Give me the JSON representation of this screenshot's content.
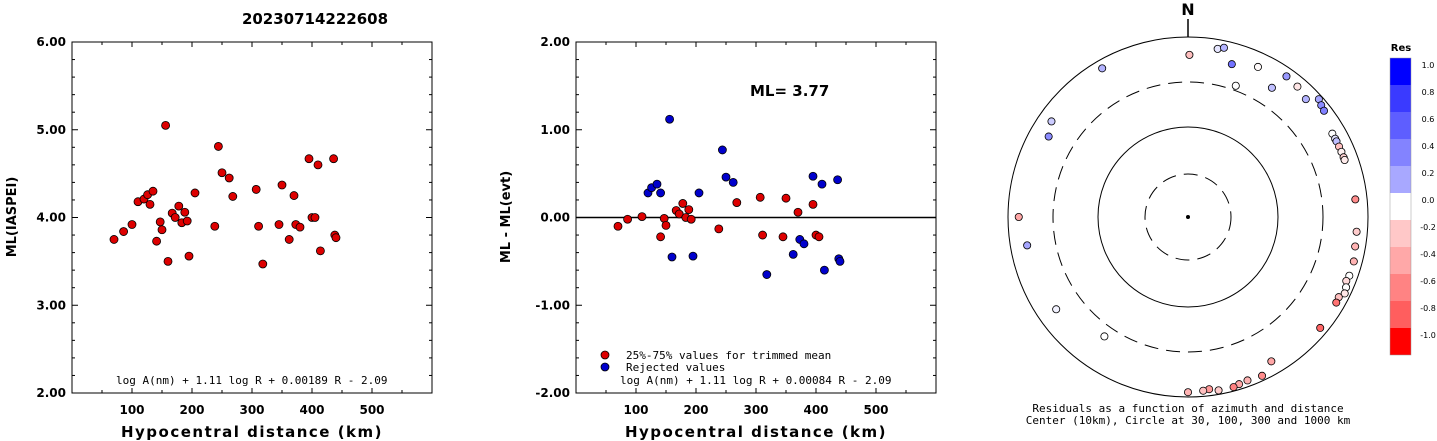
{
  "title": "20230714222608",
  "chart_data": [
    {
      "type": "scatter",
      "ylabel": "ML(IASPEI)",
      "xlabel": "Hypocentral distance (km)",
      "xlim": [
        0,
        600
      ],
      "ylim": [
        2.0,
        6.0
      ],
      "xticks": [
        "100",
        "200",
        "300",
        "400",
        "500"
      ],
      "yticks": [
        "2.00",
        "3.00",
        "4.00",
        "5.00",
        "6.00"
      ],
      "formula": "log A(nm) + 1.11 log R + 0.00189 R - 2.09",
      "points": [
        [
          70,
          3.75
        ],
        [
          86,
          3.84
        ],
        [
          100,
          3.92
        ],
        [
          110,
          4.18
        ],
        [
          120,
          4.21
        ],
        [
          126,
          4.26
        ],
        [
          130,
          4.15
        ],
        [
          135,
          4.3
        ],
        [
          141,
          3.73
        ],
        [
          147,
          3.95
        ],
        [
          150,
          3.86
        ],
        [
          156,
          5.05
        ],
        [
          160,
          3.5
        ],
        [
          167,
          4.05
        ],
        [
          172,
          4.0
        ],
        [
          178,
          4.13
        ],
        [
          183,
          3.94
        ],
        [
          188,
          4.06
        ],
        [
          192,
          3.96
        ],
        [
          195,
          3.56
        ],
        [
          205,
          4.28
        ],
        [
          238,
          3.9
        ],
        [
          244,
          4.81
        ],
        [
          250,
          4.51
        ],
        [
          262,
          4.45
        ],
        [
          268,
          4.24
        ],
        [
          307,
          4.32
        ],
        [
          311,
          3.9
        ],
        [
          318,
          3.47
        ],
        [
          345,
          3.92
        ],
        [
          350,
          4.37
        ],
        [
          362,
          3.75
        ],
        [
          370,
          4.25
        ],
        [
          373,
          3.92
        ],
        [
          380,
          3.89
        ],
        [
          395,
          4.67
        ],
        [
          400,
          4.0
        ],
        [
          405,
          4.0
        ],
        [
          410,
          4.6
        ],
        [
          414,
          3.62
        ],
        [
          436,
          4.67
        ],
        [
          438,
          3.8
        ],
        [
          440,
          3.77
        ]
      ]
    },
    {
      "type": "scatter",
      "ylabel": "ML - ML(evt)",
      "xlabel": "Hypocentral distance (km)",
      "xlim": [
        0,
        600
      ],
      "ylim": [
        -2.0,
        2.0
      ],
      "xticks": [
        "100",
        "200",
        "300",
        "400",
        "500"
      ],
      "yticks": [
        "-2.00",
        "-1.00",
        "0.00",
        "1.00",
        "2.00"
      ],
      "annotation": "ML= 3.77",
      "formula": "log A(nm) + 1.11 log R + 0.00084 R - 2.09",
      "legend": [
        "25%-75% values for trimmed mean",
        "Rejected values"
      ],
      "colors": {
        "trimmed": "#dd0000",
        "rejected": "#0000cc"
      },
      "trimmed": [
        [
          70,
          -0.1
        ],
        [
          86,
          -0.02
        ],
        [
          110,
          0.01
        ],
        [
          141,
          -0.22
        ],
        [
          147,
          -0.01
        ],
        [
          150,
          -0.09
        ],
        [
          167,
          0.08
        ],
        [
          172,
          0.04
        ],
        [
          178,
          0.16
        ],
        [
          183,
          0.0
        ],
        [
          188,
          0.09
        ],
        [
          192,
          -0.02
        ],
        [
          238,
          -0.13
        ],
        [
          268,
          0.17
        ],
        [
          307,
          0.23
        ],
        [
          311,
          -0.2
        ],
        [
          345,
          -0.22
        ],
        [
          350,
          0.22
        ],
        [
          370,
          0.06
        ],
        [
          395,
          0.15
        ],
        [
          400,
          -0.2
        ],
        [
          405,
          -0.22
        ]
      ],
      "rejected": [
        [
          120,
          0.28
        ],
        [
          126,
          0.34
        ],
        [
          135,
          0.38
        ],
        [
          141,
          0.28
        ],
        [
          156,
          1.12
        ],
        [
          160,
          -0.45
        ],
        [
          195,
          -0.44
        ],
        [
          205,
          0.28
        ],
        [
          244,
          0.77
        ],
        [
          250,
          0.46
        ],
        [
          262,
          0.4
        ],
        [
          318,
          -0.65
        ],
        [
          362,
          -0.42
        ],
        [
          373,
          -0.25
        ],
        [
          380,
          -0.3
        ],
        [
          395,
          0.47
        ],
        [
          410,
          0.38
        ],
        [
          414,
          -0.6
        ],
        [
          436,
          0.43
        ],
        [
          438,
          -0.47
        ],
        [
          440,
          -0.5
        ]
      ]
    },
    {
      "type": "polar-scatter",
      "north_label": "N",
      "caption_line1": "Residuals as a function of azimuth and distance",
      "caption_line2": "Center (10km), Circle at 30, 100, 300 and 1000 km",
      "colorbar_title": "Res",
      "colorbar_ticks": [
        "1.0",
        "0.8",
        "0.6",
        "0.4",
        "0.2",
        "0.0",
        "-0.2",
        "-0.4",
        "-0.6",
        "-0.8",
        "-1.0"
      ],
      "colorbar_colors": [
        "#0000ff",
        "#3a3aff",
        "#5e5eff",
        "#8383ff",
        "#a8a8ff",
        "#ffffff",
        "#ffc8c8",
        "#ffa8a8",
        "#ff8383",
        "#ff5e5e",
        "#ff0000"
      ],
      "points": [
        [
          0.5,
          620,
          -0.25
        ],
        [
          10,
          780,
          0.1
        ],
        [
          12,
          830,
          0.3
        ],
        [
          16,
          570,
          0.55
        ],
        [
          20,
          340,
          0.0
        ],
        [
          25,
          680,
          -0.02
        ],
        [
          33,
          500,
          0.25
        ],
        [
          35,
          800,
          0.4
        ],
        [
          40,
          770,
          -0.1
        ],
        [
          45,
          700,
          0.3
        ],
        [
          48,
          900,
          0.35
        ],
        [
          50,
          850,
          0.45
        ],
        [
          52,
          820,
          0.5
        ],
        [
          60,
          700,
          0.0
        ],
        [
          62,
          700,
          0.1
        ],
        [
          63,
          700,
          0.25
        ],
        [
          65,
          700,
          -0.25
        ],
        [
          67,
          700,
          -0.05
        ],
        [
          69,
          700,
          -0.18
        ],
        [
          70,
          700,
          -0.08
        ],
        [
          84,
          730,
          -0.45
        ],
        [
          95,
          750,
          -0.2
        ],
        [
          100,
          760,
          -0.3
        ],
        [
          105,
          800,
          -0.3
        ],
        [
          110,
          800,
          0.0
        ],
        [
          112,
          780,
          -0.15
        ],
        [
          114,
          830,
          0.0
        ],
        [
          116,
          860,
          -0.1
        ],
        [
          118,
          780,
          -0.25
        ],
        [
          120,
          790,
          -0.55
        ],
        [
          130,
          820,
          -0.6
        ],
        [
          150,
          700,
          -0.35
        ],
        [
          155,
          880,
          -0.45
        ],
        [
          160,
          850,
          -0.3
        ],
        [
          163,
          870,
          -0.35
        ],
        [
          165,
          900,
          -0.5
        ],
        [
          170,
          900,
          -0.2
        ],
        [
          173,
          840,
          -0.4
        ],
        [
          175,
          860,
          -0.25
        ],
        [
          180,
          880,
          -0.3
        ],
        [
          215,
          400,
          0.0
        ],
        [
          235,
          600,
          0.05
        ],
        [
          260,
          640,
          0.35
        ],
        [
          270,
          750,
          -0.35
        ],
        [
          300,
          600,
          0.45
        ],
        [
          305,
          700,
          0.2
        ],
        [
          330,
          800,
          0.3
        ]
      ]
    }
  ]
}
